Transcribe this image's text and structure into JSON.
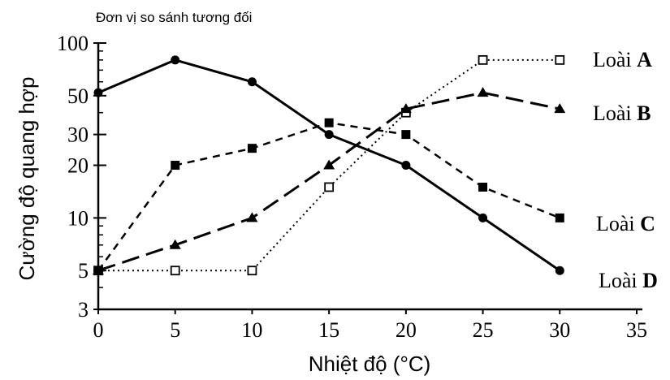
{
  "chart_data": {
    "type": "line",
    "unit_label": "Đơn vị so sánh tương đối",
    "xlabel": "Nhiệt độ (°C)",
    "ylabel": "Cường độ quang hợp",
    "y_scale": "log",
    "xlim": [
      0,
      35
    ],
    "ylim": [
      3,
      100
    ],
    "x_ticks": [
      0,
      5,
      10,
      15,
      20,
      25,
      30,
      35
    ],
    "y_ticks": [
      3,
      5,
      10,
      20,
      30,
      50,
      100
    ],
    "x": [
      0,
      5,
      10,
      15,
      20,
      25,
      30
    ],
    "series": [
      {
        "name_prefix": "Loài",
        "name_letter": "A",
        "line_style": "dotted",
        "marker": "open-square",
        "values": [
          5,
          5,
          5,
          15,
          40,
          80,
          80
        ]
      },
      {
        "name_prefix": "Loài",
        "name_letter": "B",
        "line_style": "long-dash",
        "marker": "filled-triangle",
        "values": [
          5,
          7,
          10,
          20,
          42,
          52,
          42
        ]
      },
      {
        "name_prefix": "Loài",
        "name_letter": "C",
        "line_style": "short-dash",
        "marker": "filled-square",
        "values": [
          5,
          20,
          25,
          35,
          30,
          15,
          10
        ]
      },
      {
        "name_prefix": "Loài",
        "name_letter": "D",
        "line_style": "solid",
        "marker": "filled-circle",
        "values": [
          52,
          80,
          60,
          30,
          20,
          10,
          5
        ]
      }
    ]
  }
}
